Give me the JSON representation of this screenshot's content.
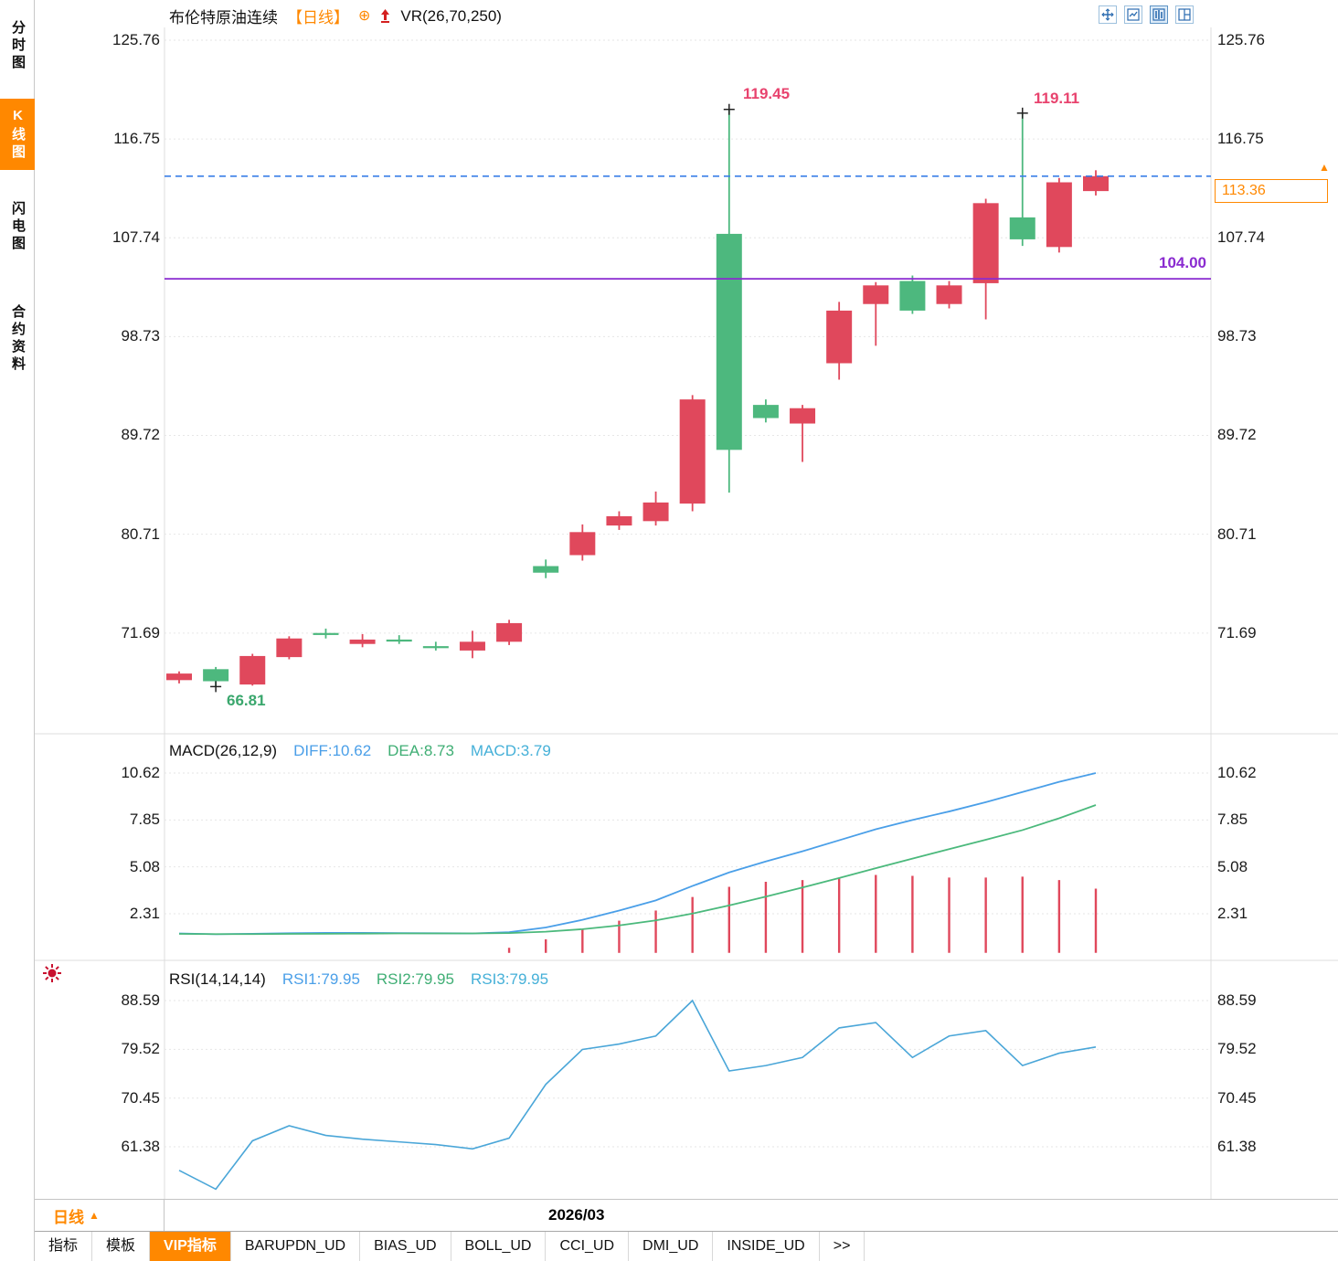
{
  "sidebar": {
    "tabs": [
      {
        "id": "time-chart",
        "label": "分时图",
        "active": false
      },
      {
        "id": "kline-chart",
        "label": "K线图",
        "active": true
      },
      {
        "id": "flash-chart",
        "label": "闪电图",
        "active": false
      },
      {
        "id": "contract-info",
        "label": "合约资料",
        "active": false
      }
    ]
  },
  "header": {
    "title": "布伦特原油连续",
    "period_tag": "【日线】",
    "vr_label": "VR(26,70,250)"
  },
  "main_chart": {
    "y_ticks": [
      "125.76",
      "116.75",
      "107.74",
      "98.73",
      "89.72",
      "80.71",
      "71.69"
    ],
    "annotations": {
      "high1": "119.45",
      "high2": "119.11",
      "low": "66.81"
    },
    "support_line": {
      "value": 104.0,
      "label": "104.00"
    },
    "last_price": {
      "value": 113.36,
      "label": "113.36"
    }
  },
  "macd": {
    "label": "MACD(26,12,9)",
    "diff": "DIFF:10.62",
    "dea": "DEA:8.73",
    "macd": "MACD:3.79",
    "y_ticks": [
      "10.62",
      "7.85",
      "5.08",
      "2.31"
    ]
  },
  "rsi": {
    "label": "RSI(14,14,14)",
    "rsi1": "RSI1:79.95",
    "rsi2": "RSI2:79.95",
    "rsi3": "RSI3:79.95",
    "y_ticks": [
      "88.59",
      "79.52",
      "70.45",
      "61.38"
    ]
  },
  "footer": {
    "period": "日线",
    "date": "2026/03",
    "tabs": [
      {
        "id": "indicators",
        "label": "指标"
      },
      {
        "id": "templates",
        "label": "模板"
      },
      {
        "id": "vip-indicators",
        "label": "VIP指标",
        "active": true
      },
      {
        "id": "barupdn-ud",
        "label": "BARUPDN_UD"
      },
      {
        "id": "bias-ud",
        "label": "BIAS_UD"
      },
      {
        "id": "boll-ud",
        "label": "BOLL_UD"
      },
      {
        "id": "cci-ud",
        "label": "CCI_UD"
      },
      {
        "id": "dmi-ud",
        "label": "DMI_UD"
      },
      {
        "id": "inside-ud",
        "label": "INSIDE_UD"
      },
      {
        "id": "more",
        "label": ">>"
      }
    ]
  },
  "colors": {
    "up": "#e0485c",
    "down": "#4db87e",
    "macd_diff": "#4a9fe8",
    "macd_dea": "#4bb97c",
    "macd_hist": "#e0485c",
    "rsi_line": "#4aa6d8",
    "hline_purple": "#8a2bd0",
    "dashed_blue": "#3a7fe8",
    "accent_orange": "#ff8800",
    "annotation_pink": "#e8436e",
    "annotation_green": "#3aa76d",
    "grid": "#e6e6e6"
  },
  "chart_data": {
    "type": "candlestick",
    "title": "布伦特原油连续 日线",
    "panels": [
      "kline",
      "macd",
      "rsi"
    ],
    "x_axis_label": "2026/03",
    "main_y_range": [
      63.2,
      126.3
    ],
    "candles": [
      [
        67.4,
        68.2,
        67.1,
        68.0
      ],
      [
        68.4,
        68.6,
        66.81,
        67.3
      ],
      [
        67.0,
        69.8,
        66.9,
        69.6
      ],
      [
        69.5,
        71.4,
        69.3,
        71.2
      ],
      [
        71.7,
        72.1,
        71.2,
        71.55
      ],
      [
        70.7,
        71.6,
        70.4,
        71.1
      ],
      [
        71.1,
        71.5,
        70.7,
        70.95
      ],
      [
        70.5,
        70.9,
        70.1,
        70.35
      ],
      [
        70.1,
        71.9,
        69.4,
        70.9
      ],
      [
        70.9,
        72.9,
        70.6,
        72.6
      ],
      [
        77.8,
        78.4,
        76.7,
        77.2
      ],
      [
        78.8,
        81.6,
        78.3,
        80.9
      ],
      [
        81.5,
        82.8,
        81.1,
        82.35
      ],
      [
        81.9,
        84.6,
        81.5,
        83.6
      ],
      [
        83.5,
        93.4,
        82.8,
        93.0
      ],
      [
        108.1,
        119.45,
        84.5,
        88.4
      ],
      [
        92.5,
        93.0,
        90.9,
        91.3
      ],
      [
        90.8,
        92.5,
        87.3,
        92.2
      ],
      [
        96.3,
        101.9,
        94.8,
        101.1
      ],
      [
        101.7,
        103.7,
        97.9,
        103.4
      ],
      [
        103.8,
        104.3,
        100.8,
        101.1
      ],
      [
        101.7,
        103.8,
        101.3,
        103.4
      ],
      [
        103.6,
        111.3,
        100.3,
        110.9
      ],
      [
        109.6,
        119.11,
        107.0,
        107.6
      ],
      [
        106.9,
        113.2,
        106.4,
        112.8
      ],
      [
        112.0,
        113.9,
        111.6,
        113.36
      ]
    ],
    "markers": [
      {
        "index": 1,
        "position": "low",
        "label": "66.81"
      },
      {
        "index": 15,
        "position": "high",
        "label": "119.45"
      },
      {
        "index": 23,
        "position": "high",
        "label": "119.11"
      }
    ],
    "macd": {
      "diff": [
        1.15,
        1.1,
        1.13,
        1.16,
        1.18,
        1.18,
        1.17,
        1.16,
        1.15,
        1.22,
        1.5,
        1.95,
        2.5,
        3.1,
        3.95,
        4.75,
        5.4,
        6.0,
        6.65,
        7.3,
        7.85,
        8.35,
        8.9,
        9.5,
        10.1,
        10.62
      ],
      "dea": [
        1.12,
        1.11,
        1.11,
        1.12,
        1.13,
        1.14,
        1.15,
        1.15,
        1.15,
        1.17,
        1.25,
        1.4,
        1.62,
        1.92,
        2.32,
        2.8,
        3.32,
        3.86,
        4.42,
        5.0,
        5.57,
        6.13,
        6.68,
        7.25,
        7.95,
        8.73
      ],
      "hist": [
        0.05,
        0.02,
        0.04,
        0.06,
        0.08,
        0.06,
        0.04,
        0.02,
        0.05,
        0.3,
        0.8,
        1.4,
        1.9,
        2.5,
        3.3,
        3.9,
        4.2,
        4.3,
        4.45,
        4.6,
        4.55,
        4.45,
        4.45,
        4.5,
        4.3,
        3.79
      ]
    },
    "rsi": {
      "values": [
        57.0,
        53.5,
        62.5,
        65.3,
        63.5,
        62.8,
        62.3,
        61.8,
        61.0,
        63.0,
        73.0,
        79.5,
        80.5,
        82.0,
        88.59,
        75.5,
        76.5,
        78.0,
        83.5,
        84.5,
        78.0,
        82.0,
        83.0,
        76.5,
        78.8,
        79.95
      ]
    }
  }
}
